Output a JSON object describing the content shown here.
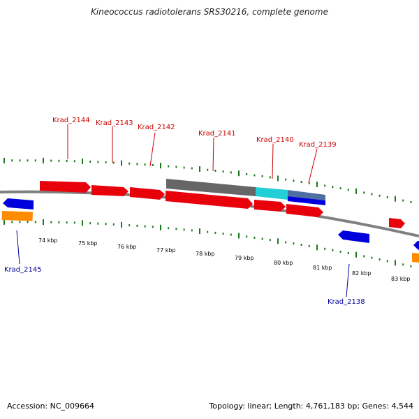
{
  "title": "Kineococcus radiotolerans SRS30216, complete genome",
  "footer": {
    "accession": "Accession: NC_009664",
    "summary": "Topology: linear; Length: 4,761,183 bp; Genes: 4,544"
  },
  "colors": {
    "forward_gene": "#e8000b",
    "reverse_gene": "#0000dd",
    "rna_gene": "#ff8c00",
    "highlight_dark": "#666666",
    "highlight_cyan": "#22cfd6",
    "highlight_steel": "#4f6fa0",
    "backbone": "#808080",
    "tick": "#1a7a1a",
    "label_forward": "#cc0000",
    "label_reverse": "#000099"
  },
  "axis": {
    "unit": "kbp",
    "ticks": [
      "74 kbp",
      "75 kbp",
      "76 kbp",
      "77 kbp",
      "78 kbp",
      "79 kbp",
      "80 kbp",
      "81 kbp",
      "82 kbp",
      "83 kbp"
    ]
  },
  "gene_labels_top": [
    "Krad_2144",
    "Krad_2143",
    "Krad_2142",
    "Krad_2141",
    "Krad_2140",
    "Krad_2139"
  ],
  "gene_labels_bottom": [
    "Krad_2145",
    "Krad_2138"
  ]
}
